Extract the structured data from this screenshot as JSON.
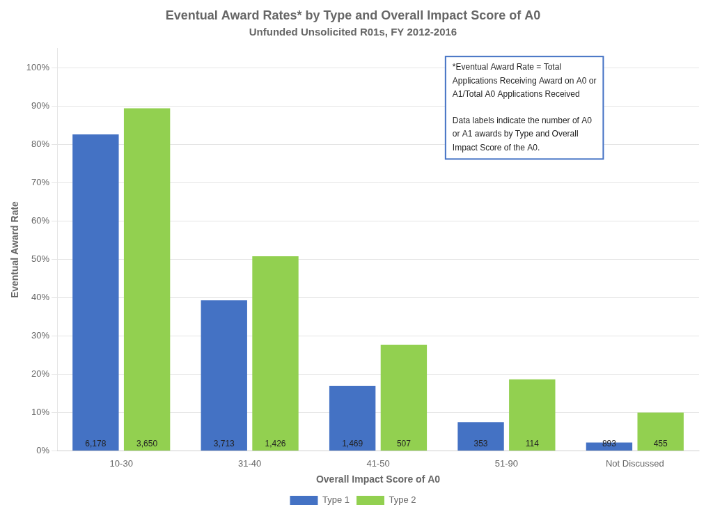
{
  "chart_data": {
    "type": "bar",
    "title": "Eventual Award Rates* by Type and Overall Impact Score of A0",
    "subtitle": "Unfunded Unsolicited R01s, FY 2012-2016",
    "xlabel": "Overall Impact Score of A0",
    "ylabel": "Eventual Award Rate",
    "categories": [
      "10-30",
      "31-40",
      "41-50",
      "51-90",
      "Not Discussed"
    ],
    "series": [
      {
        "name": "Type 1",
        "color": "#4472C4",
        "values": [
          0.826,
          0.393,
          0.17,
          0.075,
          0.022
        ],
        "awards": [
          {
            "value": 6178,
            "label": "6,178"
          },
          {
            "value": 3713,
            "label": "3,713"
          },
          {
            "value": 1469,
            "label": "1,469"
          },
          {
            "value": 353,
            "label": "353"
          },
          {
            "value": 893,
            "label": "893"
          }
        ]
      },
      {
        "name": "Type 2",
        "color": "#92D050",
        "values": [
          0.894,
          0.508,
          0.277,
          0.187,
          0.1
        ],
        "awards": [
          {
            "value": 3650,
            "label": "3,650"
          },
          {
            "value": 1426,
            "label": "1,426"
          },
          {
            "value": 507,
            "label": "507"
          },
          {
            "value": 114,
            "label": "114"
          },
          {
            "value": 455,
            "label": "455"
          }
        ]
      }
    ],
    "ylim": [
      0,
      1.05
    ],
    "yticks": [
      {
        "value": 0.0,
        "label": "0%"
      },
      {
        "value": 0.1,
        "label": "10%"
      },
      {
        "value": 0.2,
        "label": "20%"
      },
      {
        "value": 0.3,
        "label": "30%"
      },
      {
        "value": 0.4,
        "label": "40%"
      },
      {
        "value": 0.5,
        "label": "50%"
      },
      {
        "value": 0.6,
        "label": "60%"
      },
      {
        "value": 0.7,
        "label": "70%"
      },
      {
        "value": 0.8,
        "label": "80%"
      },
      {
        "value": 0.9,
        "label": "90%"
      },
      {
        "value": 1.0,
        "label": "100%"
      }
    ],
    "grid": true,
    "legend": "bottom",
    "annotation": "*Eventual Award Rate = Total\nApplications Receiving Award on A0 or\nA1/Total A0 Applications Received\n\nData labels indicate the number of A0\nor A1 awards by Type and Overall\nImpact Score of the A0."
  }
}
